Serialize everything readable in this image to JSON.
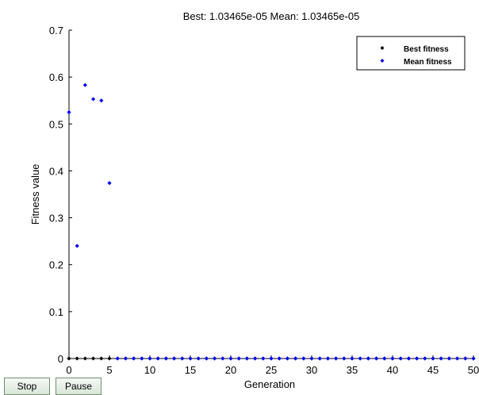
{
  "controls": {
    "stop_label": "Stop",
    "pause_label": "Pause"
  },
  "chart_data": {
    "type": "scatter",
    "title": "Best: 1.03465e-05 Mean: 1.03465e-05",
    "xlabel": "Generation",
    "ylabel": "Fitness value",
    "xlim": [
      0,
      50
    ],
    "ylim": [
      0,
      0.7
    ],
    "xticks": [
      0,
      5,
      10,
      15,
      20,
      25,
      30,
      35,
      40,
      45,
      50
    ],
    "yticks": [
      0,
      0.1,
      0.2,
      0.3,
      0.4,
      0.5,
      0.6,
      0.7
    ],
    "ytick_labels": [
      "0",
      "0.1",
      "0.2",
      "0.3",
      "0.4",
      "0.5",
      "0.6",
      "0.7"
    ],
    "grid": false,
    "legend_position": "top-right",
    "series": [
      {
        "name": "Best fitness",
        "color": "#000000",
        "marker": "diamond",
        "x": [
          0,
          1,
          2,
          3,
          4,
          5,
          6,
          7,
          8,
          9,
          10,
          11,
          12,
          13,
          14,
          15,
          16,
          17,
          18,
          19,
          20,
          21,
          22,
          23,
          24,
          25,
          26,
          27,
          28,
          29,
          30,
          31,
          32,
          33,
          34,
          35,
          36,
          37,
          38,
          39,
          40,
          41,
          42,
          43,
          44,
          45,
          46,
          47,
          48,
          49,
          50
        ],
        "y": [
          0.0001,
          0.0001,
          0.0001,
          0.0001,
          0.0001,
          0.0001,
          0.0001,
          0.0001,
          0.0001,
          0.0001,
          0.0001,
          0.0001,
          0.0001,
          0.0001,
          0.0001,
          0.0001,
          0.0001,
          0.0001,
          0.0001,
          0.0001,
          0.0001,
          0.0001,
          0.0001,
          0.0001,
          0.0001,
          0.0001,
          0.0001,
          0.0001,
          0.0001,
          0.0001,
          0.0001,
          0.0001,
          0.0001,
          0.0001,
          0.0001,
          0.0001,
          0.0001,
          0.0001,
          0.0001,
          0.0001,
          0.0001,
          0.0001,
          0.0001,
          0.0001,
          0.0001,
          0.0001,
          0.0001,
          0.0001,
          0.0001,
          0.0001,
          1.03465e-05
        ]
      },
      {
        "name": "Mean fitness",
        "color": "#0000ff",
        "marker": "diamond",
        "x": [
          0,
          1,
          2,
          3,
          4,
          5,
          6,
          7,
          8,
          9,
          10,
          11,
          12,
          13,
          14,
          15,
          16,
          17,
          18,
          19,
          20,
          21,
          22,
          23,
          24,
          25,
          26,
          27,
          28,
          29,
          30,
          31,
          32,
          33,
          34,
          35,
          36,
          37,
          38,
          39,
          40,
          41,
          42,
          43,
          44,
          45,
          46,
          47,
          48,
          49,
          50
        ],
        "y": [
          0.525,
          0.24,
          0.583,
          0.553,
          0.55,
          0.374,
          0.0001,
          0.0001,
          0.0001,
          0.0001,
          0.0001,
          0.0001,
          0.0001,
          0.0001,
          0.0001,
          0.0001,
          0.0001,
          0.0001,
          0.0001,
          0.0001,
          0.0001,
          0.0001,
          0.0001,
          0.0001,
          0.0001,
          0.0001,
          0.0001,
          0.0001,
          0.0001,
          0.0001,
          0.0001,
          0.0001,
          0.0001,
          0.0001,
          0.0001,
          0.0001,
          0.0001,
          0.0001,
          0.0001,
          0.0001,
          0.0001,
          0.0001,
          0.0001,
          0.0001,
          0.0001,
          0.0001,
          0.0001,
          0.0001,
          0.0001,
          0.0001,
          1.03465e-05
        ]
      }
    ]
  }
}
